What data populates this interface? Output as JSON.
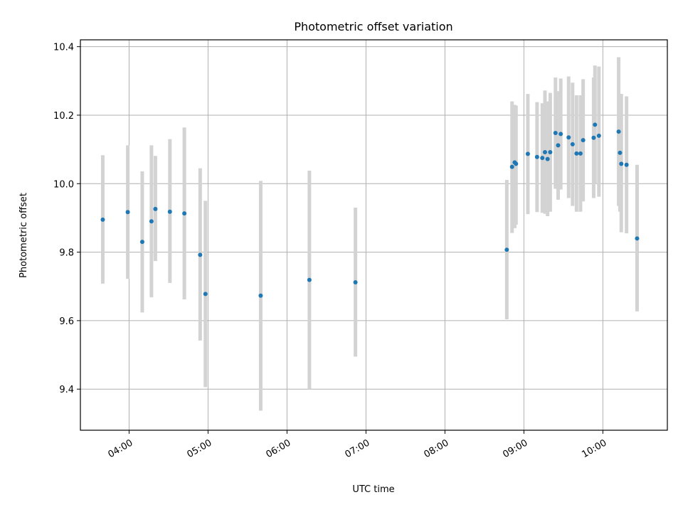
{
  "chart_data": {
    "type": "scatter",
    "title": "Photometric offset variation",
    "xlabel": "UTC time",
    "ylabel": "Photometric offset",
    "x_ticks": [
      "04:00",
      "05:00",
      "06:00",
      "07:00",
      "08:00",
      "09:00",
      "10:00"
    ],
    "x_tick_hours": [
      4,
      5,
      6,
      7,
      8,
      9,
      10
    ],
    "y_ticks": [
      9.4,
      9.6,
      9.8,
      10.0,
      10.2,
      10.4
    ],
    "y_tick_labels": [
      "9.4",
      "9.6",
      "9.8",
      "10.0",
      "10.2",
      "10.4"
    ],
    "xlim": [
      "03:23",
      "10:49"
    ],
    "ylim": [
      9.28,
      10.42
    ],
    "grid": true,
    "marker_color": "#1f77b4",
    "errorbar_color": "#d3d3d3",
    "points": [
      {
        "t": "03:40",
        "y": 9.895,
        "lo": 9.708,
        "hi": 10.083
      },
      {
        "t": "03:59",
        "y": 9.917,
        "lo": 9.722,
        "hi": 10.112
      },
      {
        "t": "04:10",
        "y": 9.83,
        "lo": 9.624,
        "hi": 10.036
      },
      {
        "t": "04:17",
        "y": 9.89,
        "lo": 9.668,
        "hi": 10.112
      },
      {
        "t": "04:20",
        "y": 9.926,
        "lo": 9.774,
        "hi": 10.081
      },
      {
        "t": "04:31",
        "y": 9.918,
        "lo": 9.71,
        "hi": 10.13
      },
      {
        "t": "04:42",
        "y": 9.913,
        "lo": 9.662,
        "hi": 10.164
      },
      {
        "t": "04:54",
        "y": 9.792,
        "lo": 9.542,
        "hi": 10.045
      },
      {
        "t": "04:58",
        "y": 9.678,
        "lo": 9.406,
        "hi": 9.95
      },
      {
        "t": "05:40",
        "y": 9.673,
        "lo": 9.337,
        "hi": 10.008
      },
      {
        "t": "06:17",
        "y": 9.719,
        "lo": 9.4,
        "hi": 10.038
      },
      {
        "t": "06:52",
        "y": 9.712,
        "lo": 9.495,
        "hi": 9.93
      },
      {
        "t": "08:47",
        "y": 9.807,
        "lo": 9.604,
        "hi": 10.011
      },
      {
        "t": "08:51",
        "y": 10.049,
        "lo": 9.856,
        "hi": 10.24
      },
      {
        "t": "08:53",
        "y": 10.062,
        "lo": 9.87,
        "hi": 10.23
      },
      {
        "t": "08:54",
        "y": 10.058,
        "lo": 9.88,
        "hi": 10.228
      },
      {
        "t": "09:03",
        "y": 10.087,
        "lo": 9.911,
        "hi": 10.262
      },
      {
        "t": "09:10",
        "y": 10.078,
        "lo": 9.917,
        "hi": 10.238
      },
      {
        "t": "09:14",
        "y": 10.075,
        "lo": 9.915,
        "hi": 10.235
      },
      {
        "t": "09:16",
        "y": 10.092,
        "lo": 9.912,
        "hi": 10.272
      },
      {
        "t": "09:18",
        "y": 10.072,
        "lo": 9.905,
        "hi": 10.24
      },
      {
        "t": "09:20",
        "y": 10.092,
        "lo": 9.918,
        "hi": 10.265
      },
      {
        "t": "09:24",
        "y": 10.148,
        "lo": 9.985,
        "hi": 10.31
      },
      {
        "t": "09:26",
        "y": 10.112,
        "lo": 9.953,
        "hi": 10.27
      },
      {
        "t": "09:28",
        "y": 10.145,
        "lo": 9.983,
        "hi": 10.307
      },
      {
        "t": "09:34",
        "y": 10.135,
        "lo": 9.958,
        "hi": 10.313
      },
      {
        "t": "09:37",
        "y": 10.115,
        "lo": 9.935,
        "hi": 10.295
      },
      {
        "t": "09:40",
        "y": 10.088,
        "lo": 9.918,
        "hi": 10.258
      },
      {
        "t": "09:43",
        "y": 10.088,
        "lo": 9.918,
        "hi": 10.258
      },
      {
        "t": "09:45",
        "y": 10.127,
        "lo": 9.948,
        "hi": 10.305
      },
      {
        "t": "09:53",
        "y": 10.134,
        "lo": 9.958,
        "hi": 10.31
      },
      {
        "t": "09:54",
        "y": 10.172,
        "lo": 10.0,
        "hi": 10.345
      },
      {
        "t": "09:57",
        "y": 10.14,
        "lo": 9.962,
        "hi": 10.342
      },
      {
        "t": "10:12",
        "y": 10.152,
        "lo": 9.935,
        "hi": 10.369
      },
      {
        "t": "10:13",
        "y": 10.09,
        "lo": 9.918,
        "hi": 10.262
      },
      {
        "t": "10:14",
        "y": 10.058,
        "lo": 9.858,
        "hi": 10.262
      },
      {
        "t": "10:18",
        "y": 10.055,
        "lo": 9.855,
        "hi": 10.255
      },
      {
        "t": "10:26",
        "y": 9.84,
        "lo": 9.627,
        "hi": 10.055
      }
    ]
  }
}
